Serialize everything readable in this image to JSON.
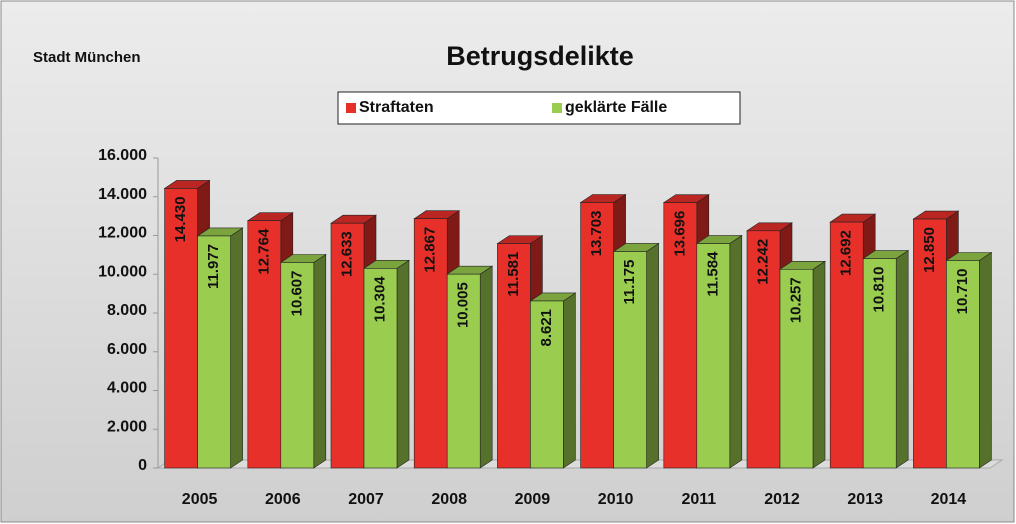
{
  "chart_data": {
    "type": "bar3d",
    "title": "Betrugsdelikte",
    "subtitle": "Stadt München",
    "categories": [
      "2005",
      "2006",
      "2007",
      "2008",
      "2009",
      "2010",
      "2011",
      "2012",
      "2013",
      "2014"
    ],
    "series": [
      {
        "name": "Straftaten",
        "color": "#e8302a",
        "values": [
          14430,
          12764,
          12633,
          12867,
          11581,
          13703,
          13696,
          12242,
          12692,
          12850
        ],
        "value_labels": [
          "14.430",
          "12.764",
          "12.633",
          "12.867",
          "11.581",
          "13.703",
          "13.696",
          "12.242",
          "12.692",
          "12.850"
        ]
      },
      {
        "name": "geklärte Fälle",
        "color": "#9acd4f",
        "values": [
          11977,
          10607,
          10304,
          10005,
          8621,
          11175,
          11584,
          10257,
          10810,
          10710
        ],
        "value_labels": [
          "11.977",
          "10.607",
          "10.304",
          "10.005",
          "8.621",
          "11.175",
          "11.584",
          "10.257",
          "10.810",
          "10.710"
        ]
      }
    ],
    "ylim": [
      0,
      16000
    ],
    "yticks": [
      0,
      {
        "value": 2000,
        "label": "2.000"
      },
      {
        "value": 4000,
        "label": "4.000"
      },
      {
        "value": 6000,
        "label": "6.000"
      },
      {
        "value": 8000,
        "label": "8.000"
      },
      {
        "value": 10000,
        "label": "10.000"
      },
      {
        "value": 12000,
        "label": "12.000"
      },
      {
        "value": 14000,
        "label": "14.000"
      },
      {
        "value": 16000,
        "label": "16.000"
      }
    ],
    "legend": "top"
  }
}
